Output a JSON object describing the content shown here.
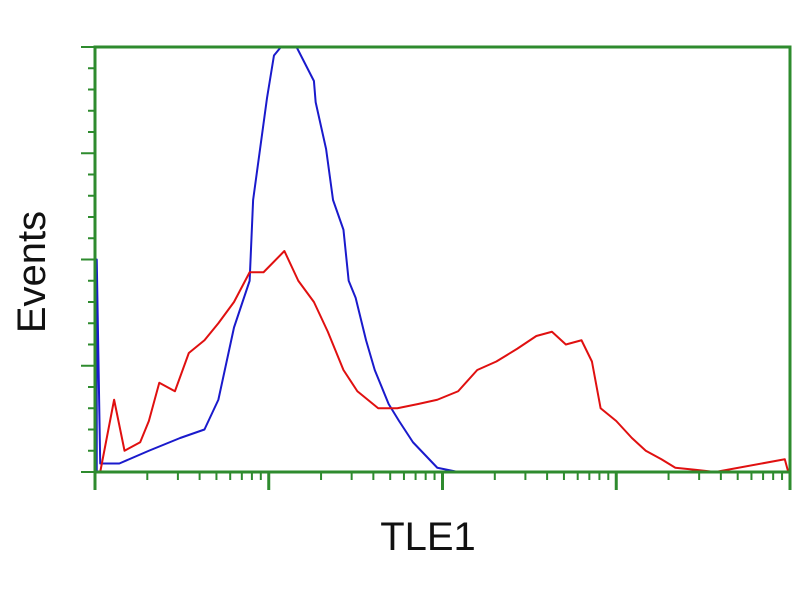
{
  "chart_data": {
    "type": "line",
    "title": "",
    "xlabel": "TLE1",
    "ylabel": "Events",
    "x_scale": "log",
    "xlim_log10": [
      0,
      4
    ],
    "ylim": [
      0,
      100
    ],
    "grid": false,
    "frame_color": "#2e8b2e",
    "series": [
      {
        "color": "#1a1acc",
        "x_log10": [
          0.01,
          0.03,
          0.14,
          0.31,
          0.49,
          0.63,
          0.71,
          0.8,
          0.89,
          0.91,
          0.95,
          0.99,
          1.03,
          1.07,
          1.16,
          1.26,
          1.27,
          1.33,
          1.37,
          1.43,
          1.46,
          1.5,
          1.56,
          1.61,
          1.69,
          1.75,
          1.83,
          1.97,
          2.09
        ],
        "y": [
          50,
          2,
          2,
          5,
          8,
          10,
          17,
          34,
          45,
          64,
          76,
          88,
          98,
          100,
          100,
          92,
          87,
          76,
          64,
          57,
          45,
          41,
          31,
          24,
          16,
          12,
          7,
          1,
          0
        ]
      },
      {
        "color": "#e01010",
        "x_log10": [
          0.03,
          0.11,
          0.17,
          0.26,
          0.31,
          0.37,
          0.46,
          0.54,
          0.63,
          0.71,
          0.8,
          0.89,
          0.97,
          1.09,
          1.17,
          1.26,
          1.34,
          1.43,
          1.51,
          1.63,
          1.74,
          1.86,
          1.97,
          2.09,
          2.2,
          2.31,
          2.43,
          2.54,
          2.63,
          2.71,
          2.8,
          2.86,
          2.91,
          3.0,
          3.09,
          3.17,
          3.26,
          3.34,
          3.46,
          3.57,
          3.97,
          3.99
        ],
        "y": [
          0,
          17,
          5,
          7,
          12,
          21,
          19,
          28,
          31,
          35,
          40,
          47,
          47,
          52,
          45,
          40,
          33,
          24,
          19,
          15,
          15,
          16,
          17,
          19,
          24,
          26,
          29,
          32,
          33,
          30,
          31,
          26,
          15,
          12,
          8,
          5,
          3,
          1,
          0.5,
          0,
          3,
          0
        ]
      }
    ]
  }
}
